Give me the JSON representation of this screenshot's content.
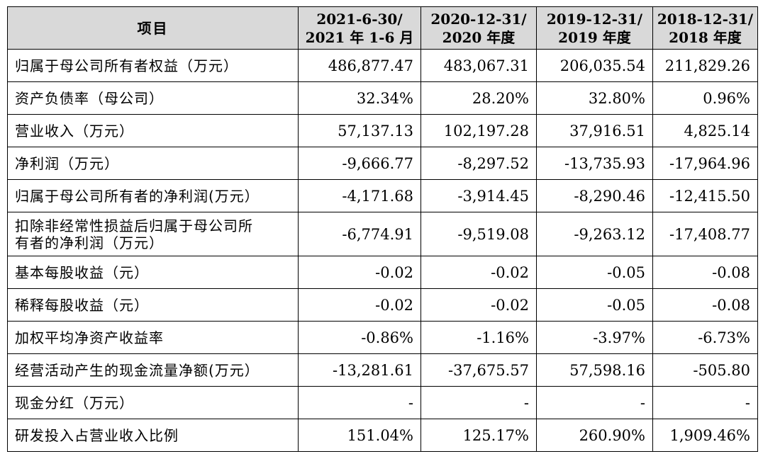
{
  "table": {
    "headers": [
      {
        "line1": "项目",
        "line2": ""
      },
      {
        "line1": "2021-6-30/",
        "line2": "2021 年 1-6 月"
      },
      {
        "line1": "2020-12-31/",
        "line2": "2020 年度"
      },
      {
        "line1": "2019-12-31/",
        "line2": "2019 年度"
      },
      {
        "line1": "2018-12-31/",
        "line2": "2018 年度"
      }
    ],
    "rows": [
      {
        "label": "归属于母公司所有者权益（万元）",
        "label2": "",
        "values": [
          "486,877.47",
          "483,067.31",
          "206,035.54",
          "211,829.26"
        ]
      },
      {
        "label": "资产负债率（母公司）",
        "label2": "",
        "values": [
          "32.34%",
          "28.20%",
          "32.80%",
          "0.96%"
        ]
      },
      {
        "label": "营业收入（万元）",
        "label2": "",
        "values": [
          "57,137.13",
          "102,197.28",
          "37,916.51",
          "4,825.14"
        ]
      },
      {
        "label": "净利润（万元）",
        "label2": "",
        "values": [
          "-9,666.77",
          "-8,297.52",
          "-13,735.93",
          "-17,964.96"
        ]
      },
      {
        "label": "归属于母公司所有者的净利润(万元）",
        "label2": "",
        "values": [
          "-4,171.68",
          "-3,914.45",
          "-8,290.46",
          "-12,415.50"
        ]
      },
      {
        "label": "扣除非经常性损益后归属于母公司所",
        "label2": "有者的净利润（万元）",
        "values": [
          "-6,774.91",
          "-9,519.08",
          "-9,263.12",
          "-17,408.77"
        ]
      },
      {
        "label": "基本每股收益（元）",
        "label2": "",
        "values": [
          "-0.02",
          "-0.02",
          "-0.05",
          "-0.08"
        ]
      },
      {
        "label": "稀释每股收益（元）",
        "label2": "",
        "values": [
          "-0.02",
          "-0.02",
          "-0.05",
          "-0.08"
        ]
      },
      {
        "label": "加权平均净资产收益率",
        "label2": "",
        "values": [
          "-0.86%",
          "-1.16%",
          "-3.97%",
          "-6.73%"
        ]
      },
      {
        "label": "经营活动产生的现金流量净额(万元）",
        "label2": "",
        "values": [
          "-13,281.61",
          "-37,675.57",
          "57,598.16",
          "-505.80"
        ]
      },
      {
        "label": "现金分红（万元）",
        "label2": "",
        "values": [
          "-",
          "-",
          "-",
          "-"
        ]
      },
      {
        "label": "研发投入占营业收入比例",
        "label2": "",
        "values": [
          "151.04%",
          "125.17%",
          "260.90%",
          "1,909.46%"
        ]
      }
    ]
  }
}
